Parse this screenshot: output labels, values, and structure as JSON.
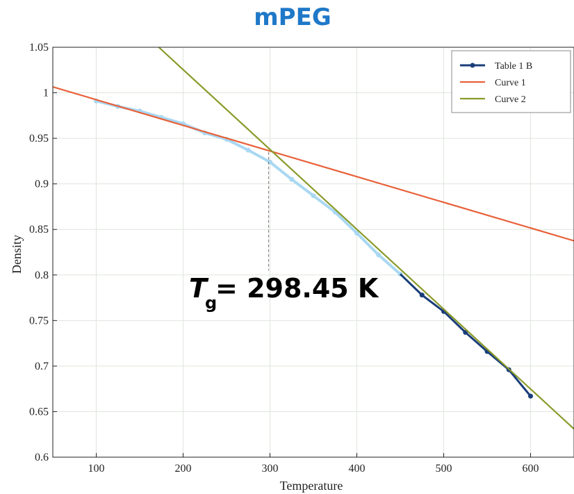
{
  "chart_data": {
    "type": "line",
    "title": "mPEG",
    "xlabel": "Temperature",
    "ylabel": "Density",
    "xlim": [
      50,
      650
    ],
    "ylim": [
      0.6,
      1.05
    ],
    "xticks": [
      100,
      200,
      300,
      400,
      500,
      600
    ],
    "xtick_labels": [
      "100",
      "200",
      "300",
      "400",
      "500",
      "600"
    ],
    "yticks": [
      0.6,
      0.65,
      0.7,
      0.75,
      0.8,
      0.85,
      0.9,
      0.95,
      1.0,
      1.05
    ],
    "ytick_labels": [
      "0.6",
      "0.65",
      "0.7",
      "0.75",
      "0.8",
      "0.85",
      "0.9",
      "0.95",
      "1",
      "1.05"
    ],
    "grid": true,
    "legend_position": "top-right",
    "series": [
      {
        "name": "Table 1 B",
        "color": "#1a3e7a",
        "faded_color": "#a9d8f2",
        "x": [
          100,
          125,
          150,
          175,
          200,
          225,
          250,
          275,
          300,
          325,
          350,
          375,
          400,
          425,
          450,
          475,
          500,
          525,
          550,
          575,
          600
        ],
        "y": [
          0.991,
          0.985,
          0.98,
          0.973,
          0.966,
          0.956,
          0.949,
          0.937,
          0.924,
          0.905,
          0.887,
          0.869,
          0.846,
          0.822,
          0.801,
          0.778,
          0.76,
          0.737,
          0.716,
          0.696,
          0.667
        ],
        "faded_until_index": 14
      },
      {
        "name": "Curve 1",
        "color": "#e8613a",
        "x": [
          50,
          650
        ],
        "y": [
          1.0065,
          0.8375
        ]
      },
      {
        "name": "Curve 2",
        "color": "#8a9a2a",
        "x": [
          172,
          650
        ],
        "y": [
          1.05,
          0.631
        ]
      }
    ],
    "annotation": {
      "symbol": "T",
      "subscript": "g",
      "text": "= 298.45 K",
      "x": 298.45,
      "y": 0.935
    }
  }
}
